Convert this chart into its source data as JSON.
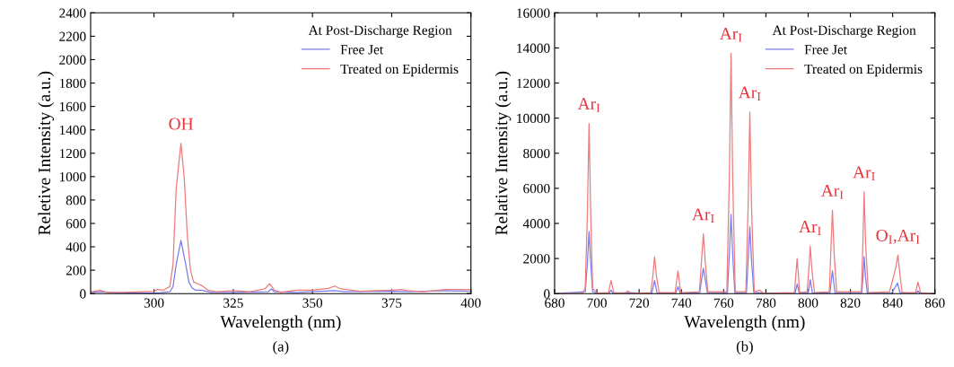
{
  "chart_data": [
    {
      "type": "line",
      "xlabel": "Wavelength (nm)",
      "ylabel": "Reletive Intensity (a.u.)",
      "legend_title": "At Post-Discharge Region",
      "legend": "top right",
      "grid": false,
      "xlim": [
        280,
        400
      ],
      "xticks": [
        300,
        325,
        350,
        375,
        400
      ],
      "ylim": [
        0,
        2400
      ],
      "yticks": [
        0,
        200,
        400,
        600,
        800,
        1000,
        1200,
        1400,
        1600,
        1800,
        2000,
        2200,
        2400
      ],
      "annotations": [
        "(a)",
        {
          "text": "OH",
          "x": 308.5,
          "y": 1285
        }
      ],
      "series": [
        {
          "name": "Free Jet",
          "color": "#7b7bee",
          "x": [
            280,
            283,
            290,
            300,
            302,
            305,
            306,
            307,
            308.5,
            310,
            311,
            312,
            313,
            315,
            318,
            325,
            336,
            337,
            338,
            345,
            357,
            360,
            375,
            380,
            392,
            400
          ],
          "values": [
            10,
            15,
            5,
            5,
            8,
            15,
            60,
            250,
            455,
            250,
            100,
            50,
            30,
            30,
            10,
            10,
            15,
            40,
            15,
            10,
            25,
            15,
            20,
            15,
            25,
            20
          ]
        },
        {
          "name": "Treated on Epidermis",
          "color": "#ee7b7b",
          "x": [
            280,
            283,
            285,
            290,
            300,
            301,
            303,
            305,
            306,
            307,
            308.5,
            309.5,
            310.5,
            311.5,
            312.5,
            314,
            315,
            317,
            320,
            325,
            330,
            335,
            336.5,
            338,
            340,
            345,
            350,
            355,
            357,
            359,
            365,
            370,
            375,
            378,
            380,
            385,
            392,
            400
          ],
          "values": [
            15,
            30,
            10,
            10,
            20,
            35,
            30,
            60,
            250,
            900,
            1285,
            1000,
            500,
            200,
            100,
            80,
            70,
            30,
            15,
            25,
            15,
            40,
            85,
            30,
            10,
            30,
            30,
            45,
            65,
            40,
            20,
            25,
            30,
            35,
            25,
            15,
            35,
            35
          ]
        }
      ]
    },
    {
      "type": "line",
      "xlabel": "Wavelength (nm)",
      "ylabel": "Relative Intensity (a.u.)",
      "legend_title": "At Post-Discharge Region",
      "legend": "top right",
      "grid": false,
      "xlim": [
        680,
        860
      ],
      "xticks": [
        680,
        700,
        720,
        740,
        760,
        780,
        800,
        820,
        840,
        860
      ],
      "ylim": [
        0,
        16000
      ],
      "yticks": [
        0,
        2000,
        4000,
        6000,
        8000,
        10000,
        12000,
        14000,
        16000
      ],
      "annotations": [
        "(b)",
        {
          "text": "Ar$_{I}$",
          "x": 696.3,
          "y": 9700
        },
        {
          "text": "Ar$_{I}$",
          "x": 750.4,
          "y": 3400
        },
        {
          "text": "Ar$_{I}$",
          "x": 763.5,
          "y": 13700
        },
        {
          "text": "Ar$_{I}$",
          "x": 772.4,
          "y": 10350
        },
        {
          "text": "Ar$_{I}$",
          "x": 801,
          "y": 2700
        },
        {
          "text": "Ar$_{I}$",
          "x": 811.5,
          "y": 4750
        },
        {
          "text": "Ar$_{I}$",
          "x": 826.5,
          "y": 5800
        },
        {
          "text": "O$_{I}$,Ar$_{I}$",
          "x": 842.5,
          "y": 2200
        }
      ],
      "series": [
        {
          "name": "Free Jet",
          "color": "#7b7bee",
          "x": [
            680,
            694.5,
            695.5,
            696.3,
            697.1,
            698,
            700,
            705.8,
            706.7,
            707.7,
            714.7,
            726,
            727.3,
            728.5,
            737.3,
            738.4,
            739.5,
            748.7,
            749.6,
            750.4,
            751.3,
            752.3,
            761.8,
            762.7,
            763.5,
            764.3,
            765.3,
            770.8,
            771.6,
            772.4,
            773.2,
            774.3,
            777,
            779,
            793.8,
            794.8,
            795.8,
            800,
            801,
            802,
            810.3,
            811.5,
            812.7,
            825.4,
            826,
            826.5,
            827.1,
            828,
            839.5,
            840.8,
            842.3,
            843.5,
            851,
            852,
            853,
            860
          ],
          "values": [
            0,
            100,
            1700,
            3550,
            1700,
            100,
            10,
            20,
            200,
            20,
            50,
            20,
            750,
            20,
            20,
            400,
            20,
            50,
            800,
            1450,
            800,
            50,
            50,
            2200,
            4500,
            2200,
            50,
            50,
            1900,
            3800,
            1900,
            50,
            50,
            10,
            20,
            550,
            20,
            30,
            800,
            30,
            50,
            1300,
            50,
            50,
            1000,
            2100,
            1000,
            30,
            20,
            300,
            600,
            50,
            10,
            150,
            10,
            0
          ]
        },
        {
          "name": "Treated on Epidermis",
          "color": "#ee7b7b",
          "x": [
            680,
            693,
            694.5,
            695.5,
            696.3,
            697.1,
            698,
            700,
            705.5,
            706.7,
            708,
            713.5,
            714.7,
            716,
            725.5,
            726.5,
            727.3,
            728.2,
            729.5,
            737,
            738.4,
            739.7,
            748.5,
            749.5,
            750.4,
            751.3,
            752.5,
            761.5,
            762.7,
            763.5,
            764.3,
            765.5,
            770.5,
            771.6,
            772.4,
            773.2,
            774.5,
            777,
            779,
            793.5,
            794.8,
            796,
            799.5,
            800.3,
            801,
            801.8,
            803,
            810,
            810.7,
            811.5,
            812.3,
            813.5,
            825.2,
            825.9,
            826.5,
            827.2,
            828.5,
            838.5,
            840.5,
            841.5,
            842.5,
            843.5,
            844.5,
            850.8,
            852,
            853.2,
            860
          ],
          "values": [
            0,
            20,
            300,
            4500,
            9700,
            4500,
            300,
            30,
            50,
            750,
            50,
            20,
            150,
            20,
            50,
            1000,
            2100,
            1000,
            50,
            50,
            1300,
            50,
            100,
            1800,
            3400,
            1800,
            100,
            100,
            6500,
            13700,
            6500,
            100,
            100,
            5000,
            10350,
            5000,
            100,
            200,
            20,
            50,
            2000,
            50,
            100,
            1300,
            2700,
            1300,
            50,
            100,
            2300,
            4750,
            2300,
            100,
            100,
            2800,
            5800,
            2800,
            50,
            100,
            1000,
            1500,
            2200,
            1000,
            50,
            50,
            650,
            50,
            0
          ]
        }
      ]
    }
  ]
}
